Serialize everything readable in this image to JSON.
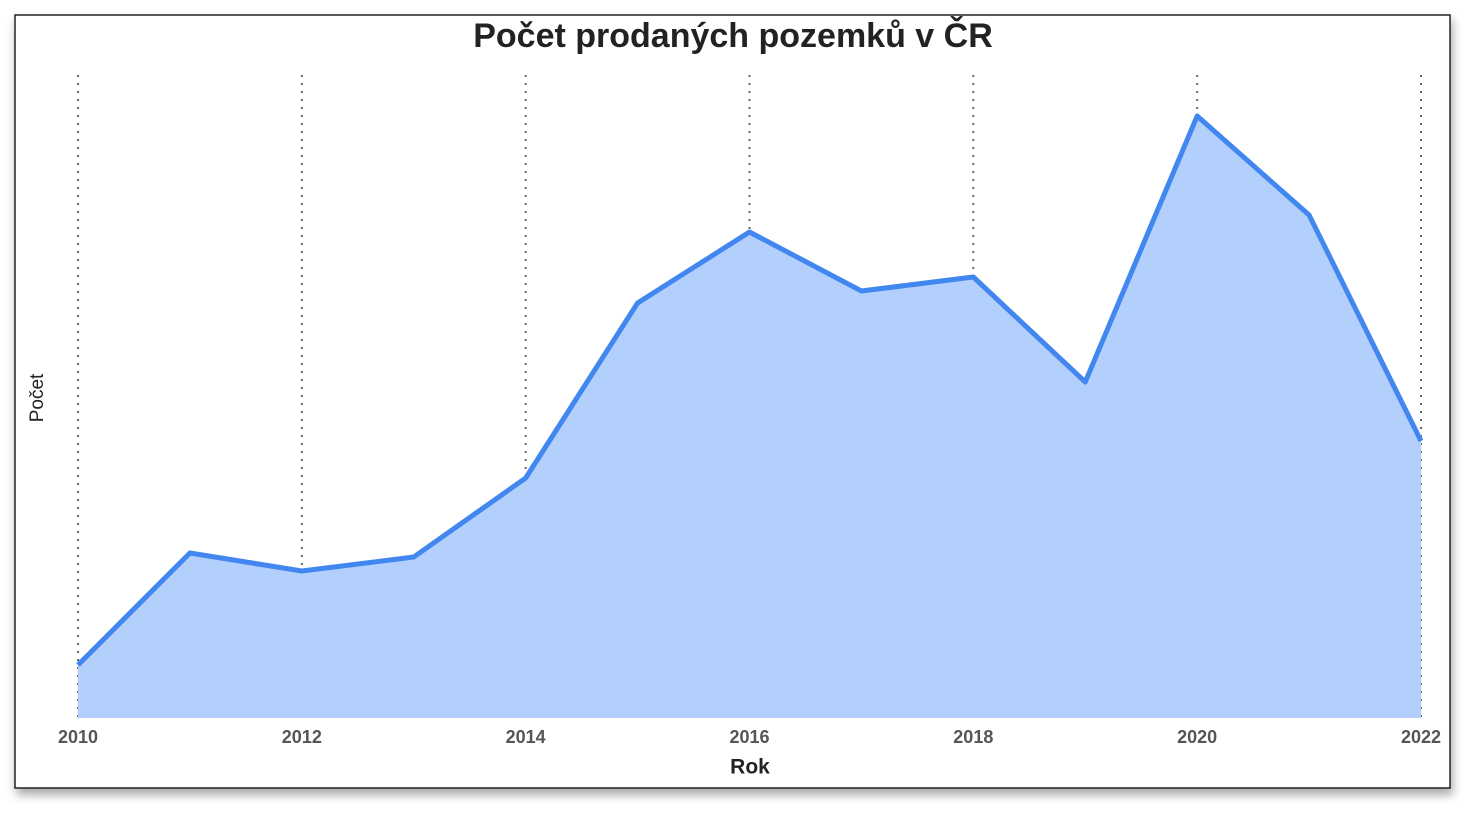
{
  "chart_data": {
    "type": "area",
    "title": "Počet prodaných pozemků v ČR",
    "x_label": "Rok",
    "y_label": "Počet",
    "x": [
      2010,
      2011,
      2012,
      2013,
      2014,
      2015,
      2016,
      2017,
      2018,
      2019,
      2020,
      2021,
      2022
    ],
    "series": [
      {
        "name": "Počet",
        "color": "#4287f0",
        "fill": "#b3cffb",
        "values": [
          53,
          165,
          147,
          161,
          240,
          415,
          486,
          427,
          441,
          336,
          602,
          503,
          277
        ]
      }
    ],
    "xlim": [
      2010,
      2022
    ],
    "xticks": [
      2010,
      2012,
      2014,
      2016,
      2018,
      2020,
      2022
    ],
    "ylim": [
      0,
      643
    ],
    "grid": true
  }
}
